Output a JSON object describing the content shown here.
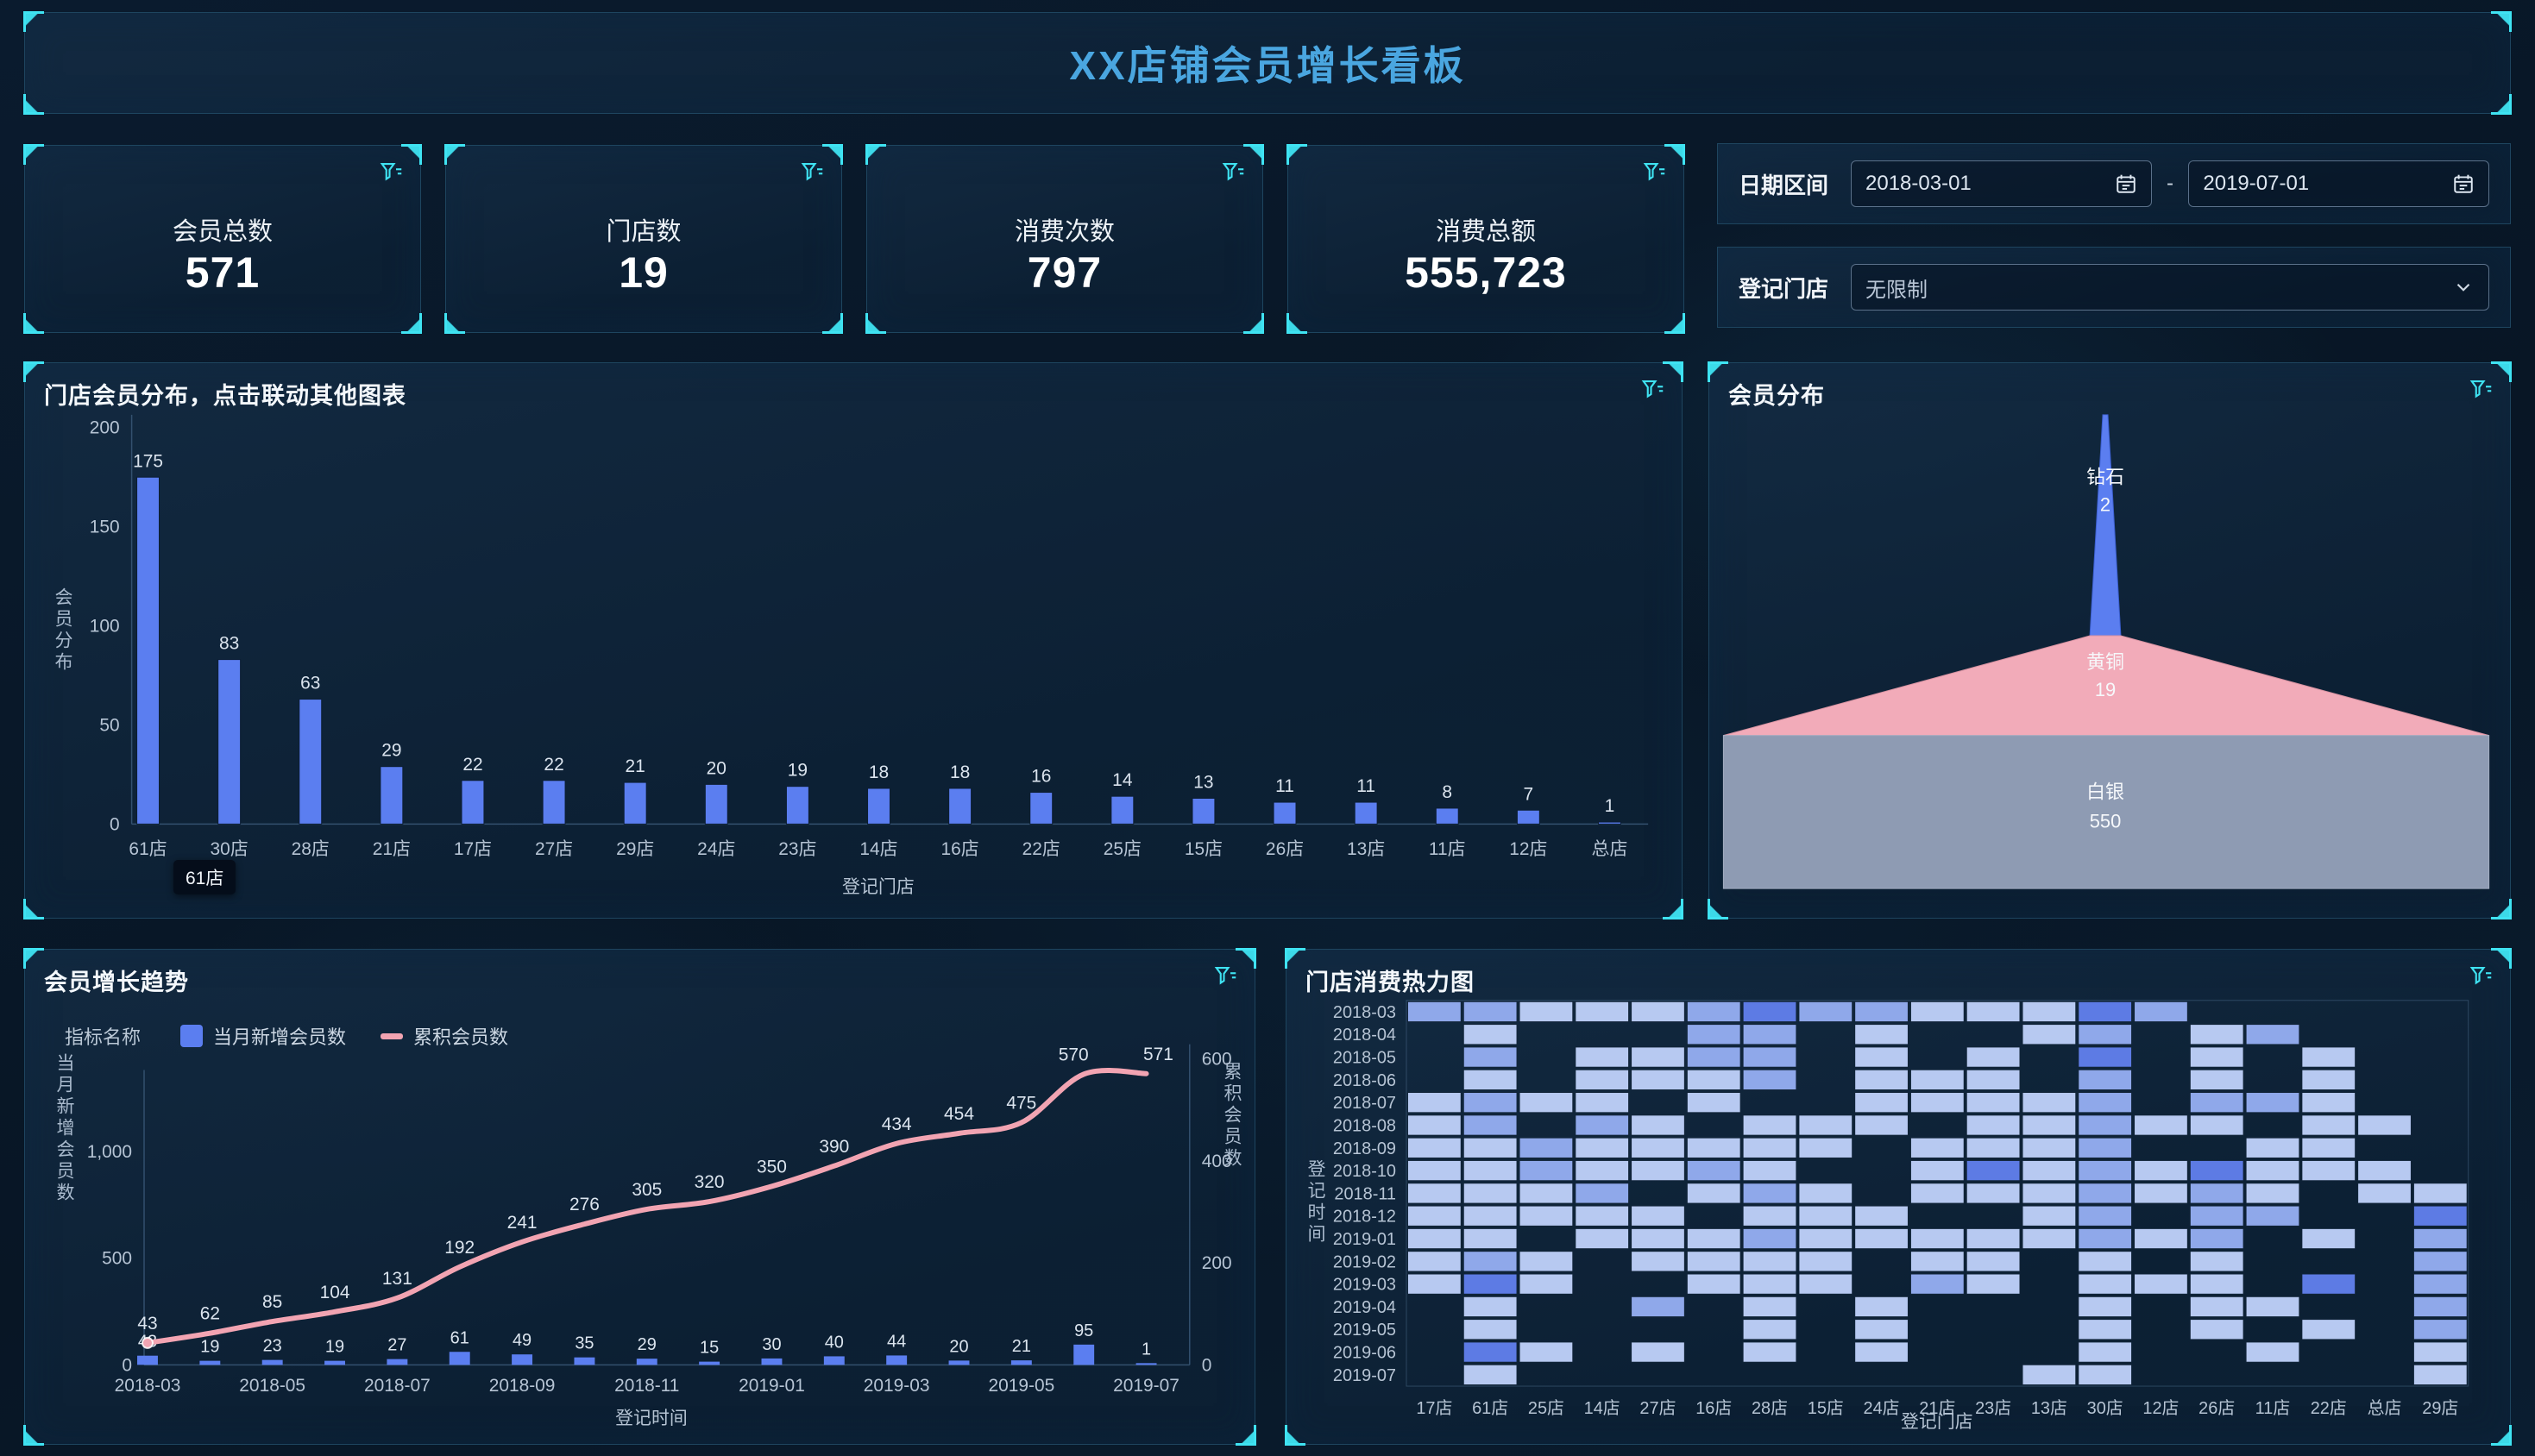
{
  "header": {
    "title": "XX店铺会员增长看板"
  },
  "kpis": [
    {
      "label": "会员总数",
      "value": "571"
    },
    {
      "label": "门店数",
      "value": "19"
    },
    {
      "label": "消费次数",
      "value": "797"
    },
    {
      "label": "消费总额",
      "value": "555,723"
    }
  ],
  "filters": {
    "date_label": "日期区间",
    "date_start": "2018-03-01",
    "date_end": "2019-07-01",
    "date_separator": "-",
    "store_label": "登记门店",
    "store_value": "无限制"
  },
  "colors": {
    "accent_cyan": "#3fe3f2",
    "title_blue": "#4aa6e0",
    "bar_blue": "#5b7ef0",
    "line_pink": "#f2a4b2",
    "axis_text": "#b6c4d4",
    "value_text": "#dbe4ee",
    "axis_line": "#33506e",
    "heat_palette": {
      "1": "#b7c9f1",
      "2": "#8fa8ea",
      "3": "#5d7be4"
    },
    "funnel": [
      "#5b7ef0",
      "#f2abb9",
      "#8e9bb3"
    ]
  },
  "bar_panel": {
    "title": "门店会员分布，点击联动其他图表",
    "tooltip": "61店"
  },
  "funnel_panel": {
    "title": "会员分布"
  },
  "trend_panel": {
    "title": "会员增长趋势",
    "legend_title": "指标名称",
    "legend_bar": "当月新增会员数",
    "legend_line": "累积会员数"
  },
  "heatmap_panel": {
    "title": "门店消费热力图"
  },
  "chart_data": [
    {
      "type": "bar",
      "title": "门店会员分布，点击联动其他图表",
      "categories": [
        "61店",
        "30店",
        "28店",
        "21店",
        "17店",
        "27店",
        "29店",
        "24店",
        "23店",
        "14店",
        "16店",
        "22店",
        "25店",
        "15店",
        "26店",
        "13店",
        "11店",
        "12店",
        "总店"
      ],
      "values": [
        175,
        83,
        63,
        29,
        22,
        22,
        21,
        20,
        19,
        18,
        18,
        16,
        14,
        13,
        11,
        11,
        8,
        7,
        1
      ],
      "xlabel": "登记门店",
      "ylabel": "会员分布",
      "ylim": [
        0,
        200
      ],
      "yticks": [
        0,
        50,
        100,
        150,
        200
      ],
      "grid": false,
      "legend_position": "none"
    },
    {
      "type": "funnel",
      "title": "会员分布",
      "slices": [
        {
          "label": "钻石",
          "value": 2
        },
        {
          "label": "黄铜",
          "value": 19
        },
        {
          "label": "白银",
          "value": 550
        }
      ]
    },
    {
      "type": "line",
      "title": "会员增长趋势",
      "x": [
        "2018-03",
        "2018-04",
        "2018-05",
        "2018-06",
        "2018-07",
        "2018-08",
        "2018-09",
        "2018-10",
        "2018-11",
        "2018-12",
        "2019-01",
        "2019-02",
        "2019-03",
        "2019-04",
        "2019-05",
        "2019-06",
        "2019-07"
      ],
      "x_tick_labels": [
        "2018-03",
        "2018-05",
        "2018-07",
        "2018-09",
        "2018-11",
        "2019-01",
        "2019-03",
        "2019-05",
        "2019-07"
      ],
      "series": [
        {
          "name": "当月新增会员数",
          "type": "bar",
          "values": [
            43,
            19,
            23,
            19,
            27,
            61,
            49,
            35,
            29,
            15,
            30,
            40,
            44,
            20,
            21,
            95,
            1
          ]
        },
        {
          "name": "累积会员数",
          "type": "line",
          "values": [
            43,
            62,
            85,
            104,
            131,
            192,
            241,
            276,
            305,
            320,
            350,
            390,
            434,
            454,
            475,
            570,
            571
          ]
        }
      ],
      "xlabel": "登记时间",
      "ylabel_left": "当月新增会员数",
      "ylabel_right": "累积会员数",
      "ylim_left": [
        0,
        1000
      ],
      "yticks_left": [
        "0",
        "500",
        "1,000"
      ],
      "ylim_right": [
        0,
        600
      ],
      "yticks_right": [
        0,
        200,
        400,
        600
      ],
      "grid": false,
      "legend_position": "top-left"
    },
    {
      "type": "heatmap",
      "title": "门店消费热力图",
      "x": [
        "17店",
        "61店",
        "25店",
        "14店",
        "27店",
        "16店",
        "28店",
        "15店",
        "24店",
        "21店",
        "23店",
        "13店",
        "30店",
        "12店",
        "26店",
        "11店",
        "22店",
        "总店",
        "29店"
      ],
      "y": [
        "2018-03",
        "2018-04",
        "2018-05",
        "2018-06",
        "2018-07",
        "2018-08",
        "2018-09",
        "2018-10",
        "2018-11",
        "2018-12",
        "2019-01",
        "2019-02",
        "2019-03",
        "2019-04",
        "2019-05",
        "2019-06",
        "2019-07"
      ],
      "xlabel": "登记门店",
      "ylabel": "登记时间",
      "legend_position": "none",
      "levels": [
        [
          2,
          2,
          1,
          1,
          1,
          2,
          3,
          2,
          2,
          1,
          1,
          1,
          3,
          2,
          0,
          0,
          0,
          0,
          0
        ],
        [
          0,
          1,
          0,
          0,
          0,
          2,
          2,
          0,
          1,
          0,
          0,
          1,
          2,
          0,
          1,
          2,
          0,
          0,
          0
        ],
        [
          0,
          2,
          0,
          1,
          1,
          2,
          2,
          0,
          1,
          0,
          1,
          0,
          3,
          0,
          1,
          0,
          1,
          0,
          0
        ],
        [
          0,
          1,
          0,
          1,
          1,
          1,
          2,
          0,
          1,
          1,
          1,
          0,
          2,
          0,
          1,
          0,
          1,
          0,
          0
        ],
        [
          1,
          2,
          1,
          1,
          0,
          1,
          0,
          0,
          1,
          1,
          1,
          1,
          2,
          0,
          2,
          2,
          1,
          0,
          0
        ],
        [
          1,
          2,
          0,
          2,
          1,
          0,
          1,
          1,
          1,
          0,
          1,
          1,
          2,
          1,
          1,
          0,
          1,
          1,
          0
        ],
        [
          1,
          1,
          2,
          1,
          1,
          1,
          1,
          1,
          0,
          1,
          1,
          1,
          2,
          0,
          0,
          1,
          1,
          0,
          0
        ],
        [
          1,
          1,
          2,
          1,
          1,
          2,
          1,
          0,
          0,
          1,
          3,
          1,
          2,
          1,
          3,
          1,
          1,
          1,
          0
        ],
        [
          1,
          1,
          1,
          2,
          0,
          1,
          2,
          1,
          0,
          1,
          1,
          1,
          2,
          1,
          2,
          1,
          0,
          1,
          1
        ],
        [
          1,
          1,
          1,
          1,
          1,
          0,
          1,
          1,
          1,
          0,
          0,
          1,
          2,
          0,
          2,
          2,
          0,
          0,
          3
        ],
        [
          1,
          1,
          0,
          1,
          1,
          1,
          2,
          1,
          1,
          1,
          1,
          1,
          2,
          1,
          2,
          0,
          1,
          0,
          2
        ],
        [
          1,
          2,
          1,
          0,
          1,
          1,
          1,
          1,
          0,
          1,
          1,
          0,
          1,
          0,
          1,
          0,
          0,
          0,
          2
        ],
        [
          1,
          3,
          1,
          0,
          0,
          1,
          1,
          1,
          0,
          2,
          1,
          0,
          1,
          1,
          1,
          0,
          3,
          0,
          2
        ],
        [
          0,
          1,
          0,
          0,
          2,
          0,
          1,
          0,
          1,
          0,
          0,
          0,
          1,
          0,
          1,
          1,
          0,
          0,
          2
        ],
        [
          0,
          1,
          0,
          0,
          0,
          0,
          1,
          0,
          1,
          0,
          0,
          0,
          1,
          0,
          1,
          0,
          1,
          0,
          2
        ],
        [
          0,
          3,
          1,
          0,
          1,
          0,
          1,
          0,
          1,
          0,
          0,
          0,
          1,
          0,
          0,
          1,
          0,
          0,
          1
        ],
        [
          0,
          1,
          0,
          0,
          0,
          0,
          0,
          0,
          0,
          0,
          0,
          1,
          1,
          0,
          0,
          0,
          0,
          0,
          1
        ]
      ]
    }
  ]
}
